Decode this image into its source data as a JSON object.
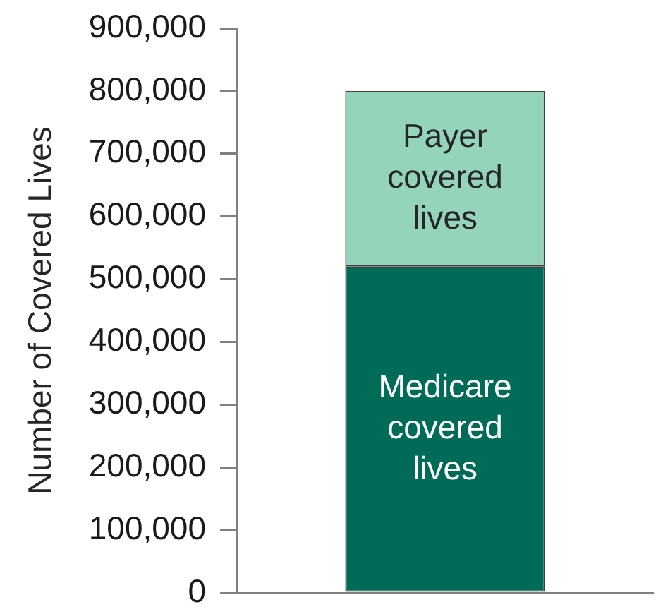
{
  "chart_data": {
    "type": "bar",
    "ylabel": "Number of Covered Lives",
    "categories": [
      null
    ],
    "stacked": true,
    "series": [
      {
        "name": "Medicare covered lives",
        "color": "#006b56",
        "values": [
          520000
        ]
      },
      {
        "name": "Payer covered lives",
        "color": "#93d4bb",
        "values": [
          280000
        ]
      }
    ],
    "ylim": [
      0,
      900000
    ],
    "yticks": [
      0,
      {
        "value": 100000,
        "label": "100,000"
      },
      {
        "value": 200000,
        "label": "200,000"
      },
      {
        "value": 300000,
        "label": "300,000"
      },
      {
        "value": 400000,
        "label": "400,000"
      },
      {
        "value": 500000,
        "label": "500,000"
      },
      {
        "value": 600000,
        "label": "600,000"
      },
      {
        "value": 700000,
        "label": "700,000"
      },
      {
        "value": 800000,
        "label": "800,000"
      },
      {
        "value": 900000,
        "label": "900,000"
      }
    ],
    "legend": false
  }
}
